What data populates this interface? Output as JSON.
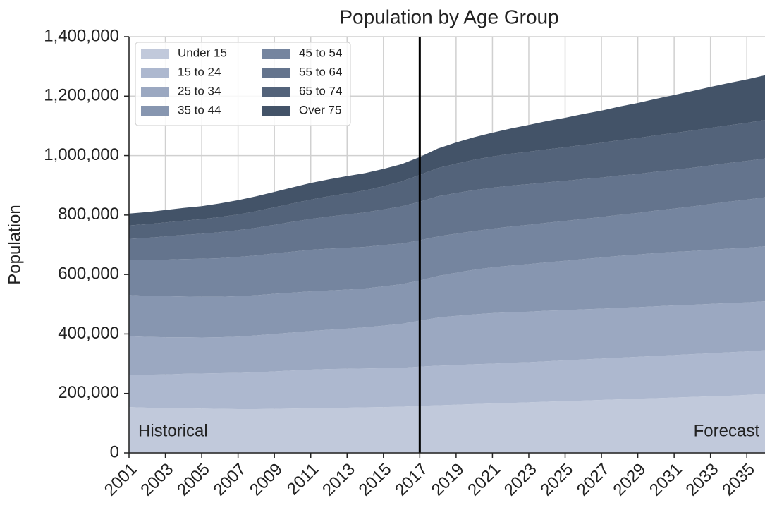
{
  "chart_data": {
    "type": "stacked_area",
    "title": "Population by Age Group",
    "ylabel": "Population",
    "x": [
      2001,
      2002,
      2003,
      2004,
      2005,
      2006,
      2007,
      2008,
      2009,
      2010,
      2011,
      2012,
      2013,
      2014,
      2015,
      2016,
      2017,
      2018,
      2019,
      2020,
      2021,
      2022,
      2023,
      2024,
      2025,
      2026,
      2027,
      2028,
      2029,
      2030,
      2031,
      2032,
      2033,
      2034,
      2035,
      2036
    ],
    "xlim": [
      2001,
      2036
    ],
    "xticks": [
      2001,
      2003,
      2005,
      2007,
      2009,
      2011,
      2013,
      2015,
      2017,
      2019,
      2021,
      2023,
      2025,
      2027,
      2029,
      2031,
      2033,
      2035
    ],
    "ylim": [
      0,
      1400000
    ],
    "yticks": [
      0,
      {
        "value": 200000,
        "label": "200,000"
      },
      {
        "value": 400000,
        "label": "400,000"
      },
      {
        "value": 600000,
        "label": "600,000"
      },
      {
        "value": 800000,
        "label": "800,000"
      },
      {
        "value": 1000000,
        "label": "1,000,000"
      },
      {
        "value": 1200000,
        "label": "1,200,000"
      },
      {
        "value": 1400000,
        "label": "1,400,000"
      }
    ],
    "grid": true,
    "legend": "upper left",
    "vline_x": 2017,
    "vline_color": "#000000",
    "annotations": [
      {
        "text": "Historical",
        "x": 2001,
        "align": "left"
      },
      {
        "text": "Forecast",
        "x": 2036,
        "align": "right"
      }
    ],
    "series": [
      {
        "name": "Under 15",
        "color": "#c1c9db",
        "values": [
          154000,
          152000,
          151000,
          150000,
          149000,
          148000,
          147000,
          147000,
          148000,
          149000,
          150000,
          151000,
          152000,
          153000,
          154000,
          155000,
          158000,
          160000,
          162000,
          164000,
          166000,
          168000,
          170000,
          172000,
          174000,
          176000,
          178000,
          180000,
          182000,
          184000,
          186000,
          188000,
          190000,
          192000,
          195000,
          198000
        ]
      },
      {
        "name": "15 to 24",
        "color": "#adb8cf",
        "values": [
          109000,
          111000,
          113000,
          116000,
          118000,
          120000,
          122000,
          124000,
          126000,
          128000,
          130000,
          131000,
          131000,
          131000,
          131000,
          131000,
          132000,
          133000,
          133000,
          134000,
          134000,
          135000,
          135000,
          136000,
          137000,
          138000,
          139000,
          140000,
          141000,
          142000,
          143000,
          144000,
          145000,
          146000,
          146000,
          147000
        ]
      },
      {
        "name": "25 to 34",
        "color": "#9ba8c1",
        "values": [
          129000,
          127000,
          125000,
          123000,
          121000,
          121000,
          122000,
          124000,
          126000,
          128000,
          130000,
          132000,
          135000,
          138000,
          143000,
          148000,
          155000,
          162000,
          166000,
          168000,
          170000,
          170000,
          170000,
          170000,
          169000,
          169000,
          168000,
          168000,
          167000,
          167000,
          167000,
          166000,
          166000,
          166000,
          165000,
          165000
        ]
      },
      {
        "name": "35 to 44",
        "color": "#8796b0",
        "values": [
          139000,
          138000,
          138000,
          137000,
          137000,
          136000,
          136000,
          135000,
          135000,
          134000,
          133000,
          132000,
          131000,
          131000,
          132000,
          133000,
          135000,
          140000,
          145000,
          150000,
          154000,
          157000,
          160000,
          163000,
          166000,
          169000,
          172000,
          175000,
          177000,
          179000,
          180000,
          181000,
          182000,
          183000,
          184000,
          185000
        ]
      },
      {
        "name": "45 to 54",
        "color": "#75859f",
        "values": [
          117000,
          120000,
          123000,
          126000,
          128000,
          130000,
          132000,
          134000,
          136000,
          138000,
          140000,
          141000,
          141000,
          140000,
          139000,
          137000,
          135000,
          133000,
          131000,
          130000,
          130000,
          131000,
          132000,
          133000,
          134000,
          135000,
          136000,
          138000,
          140000,
          143000,
          146000,
          150000,
          154000,
          158000,
          162000,
          165000
        ]
      },
      {
        "name": "55 to 64",
        "color": "#64748d",
        "values": [
          72000,
          75000,
          78000,
          81000,
          84000,
          87000,
          90000,
          93000,
          96000,
          100000,
          104000,
          108000,
          112000,
          116000,
          120000,
          125000,
          130000,
          135000,
          137000,
          138000,
          138000,
          138000,
          137000,
          136000,
          135000,
          134000,
          133000,
          132000,
          131000,
          131000,
          130000,
          130000,
          130000,
          130000,
          130000,
          130000
        ]
      },
      {
        "name": "65 to 74",
        "color": "#53637a",
        "values": [
          45000,
          46000,
          47000,
          48000,
          49000,
          51000,
          53000,
          56000,
          59000,
          62000,
          65000,
          68000,
          71000,
          74000,
          78000,
          84000,
          90000,
          95000,
          99000,
          102000,
          105000,
          107000,
          109000,
          111000,
          113000,
          115000,
          117000,
          119000,
          121000,
          122000,
          124000,
          125000,
          126000,
          127000,
          128000,
          130000
        ]
      },
      {
        "name": "Over 75",
        "color": "#435368",
        "values": [
          40000,
          41000,
          42000,
          43000,
          44000,
          46000,
          48000,
          50000,
          52000,
          54000,
          56000,
          57000,
          58000,
          58000,
          58000,
          58000,
          60000,
          66000,
          71000,
          76000,
          80000,
          85000,
          90000,
          95000,
          99000,
          104000,
          108000,
          113000,
          118000,
          123000,
          128000,
          133000,
          138000,
          142000,
          146000,
          150000
        ]
      }
    ]
  }
}
